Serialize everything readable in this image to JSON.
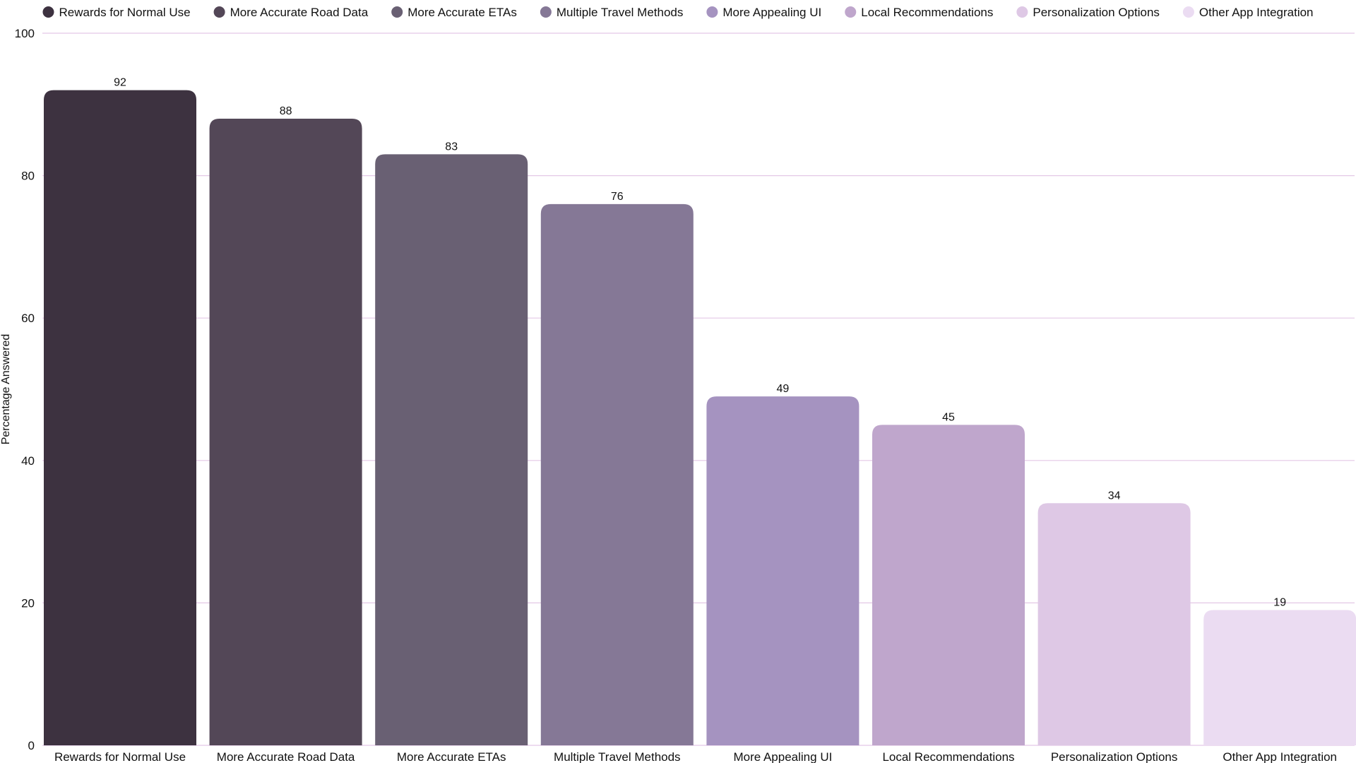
{
  "chart_data": {
    "type": "bar",
    "title": "",
    "xlabel": "",
    "ylabel": "Percentage Answered",
    "ylim": [
      0,
      100
    ],
    "yticks": [
      0,
      20,
      40,
      60,
      80,
      100
    ],
    "grid": true,
    "legend_position": "top",
    "categories": [
      "Rewards for Normal Use",
      "More Accurate Road Data",
      "More Accurate ETAs",
      "Multiple Travel Methods",
      "More Appealing UI",
      "Local Recommendations",
      "Personalization Options",
      "Other App Integration"
    ],
    "values": [
      92,
      88,
      83,
      76,
      49,
      45,
      34,
      19
    ],
    "colors": [
      "#3d3240",
      "#534757",
      "#696073",
      "#857896",
      "#a593c0",
      "#bfa6cc",
      "#dec8e5",
      "#ebdcf2"
    ]
  }
}
